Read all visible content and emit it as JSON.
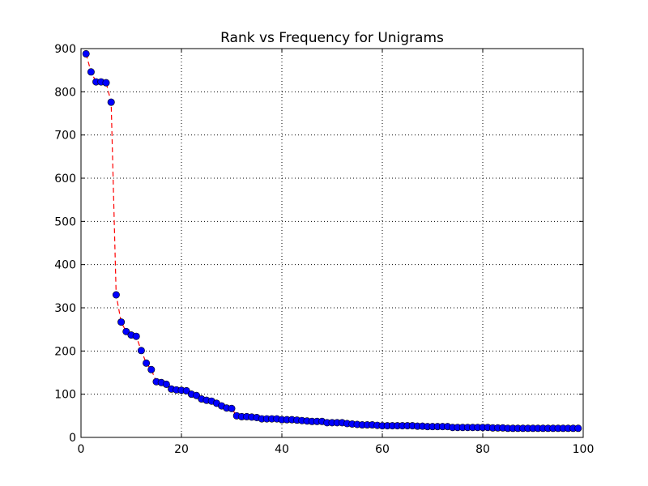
{
  "chart_data": {
    "type": "line",
    "title": "Rank vs Frequency for Unigrams",
    "xlabel": "",
    "ylabel": "",
    "xlim": [
      0,
      100
    ],
    "ylim": [
      0,
      900
    ],
    "xticks": [
      0,
      20,
      40,
      60,
      80,
      100
    ],
    "yticks": [
      0,
      100,
      200,
      300,
      400,
      500,
      600,
      700,
      800,
      900
    ],
    "xtick_labels": [
      "0",
      "20",
      "40",
      "60",
      "80",
      "100"
    ],
    "ytick_labels": [
      "0",
      "100",
      "200",
      "300",
      "400",
      "500",
      "600",
      "700",
      "800",
      "900"
    ],
    "grid": true,
    "line_style": "dashed",
    "line_color": "#ff0000",
    "marker": "circle",
    "marker_color": "#0000ff",
    "x": [
      1,
      2,
      3,
      4,
      5,
      6,
      7,
      8,
      9,
      10,
      11,
      12,
      13,
      14,
      15,
      16,
      17,
      18,
      19,
      20,
      21,
      22,
      23,
      24,
      25,
      26,
      27,
      28,
      29,
      30,
      31,
      32,
      33,
      34,
      35,
      36,
      37,
      38,
      39,
      40,
      41,
      42,
      43,
      44,
      45,
      46,
      47,
      48,
      49,
      50,
      51,
      52,
      53,
      54,
      55,
      56,
      57,
      58,
      59,
      60,
      61,
      62,
      63,
      64,
      65,
      66,
      67,
      68,
      69,
      70,
      71,
      72,
      73,
      74,
      75,
      76,
      77,
      78,
      79,
      80,
      81,
      82,
      83,
      84,
      85,
      86,
      87,
      88,
      89,
      90,
      91,
      92,
      93,
      94,
      95,
      96,
      97,
      98,
      99
    ],
    "y": [
      888,
      846,
      823,
      823,
      821,
      776,
      330,
      267,
      245,
      237,
      234,
      201,
      172,
      157,
      129,
      127,
      123,
      112,
      110,
      109,
      108,
      100,
      97,
      89,
      86,
      84,
      79,
      73,
      68,
      67,
      50,
      48,
      48,
      47,
      46,
      43,
      43,
      43,
      43,
      41,
      41,
      41,
      40,
      39,
      38,
      37,
      37,
      37,
      34,
      34,
      34,
      34,
      32,
      31,
      30,
      29,
      29,
      29,
      28,
      27,
      27,
      27,
      27,
      27,
      27,
      27,
      26,
      26,
      25,
      25,
      25,
      25,
      25,
      23,
      23,
      23,
      23,
      23,
      23,
      23,
      23,
      22,
      22,
      22,
      21,
      21,
      21,
      21,
      21,
      21,
      21,
      21,
      21,
      21,
      21,
      21,
      21,
      21,
      21
    ]
  }
}
